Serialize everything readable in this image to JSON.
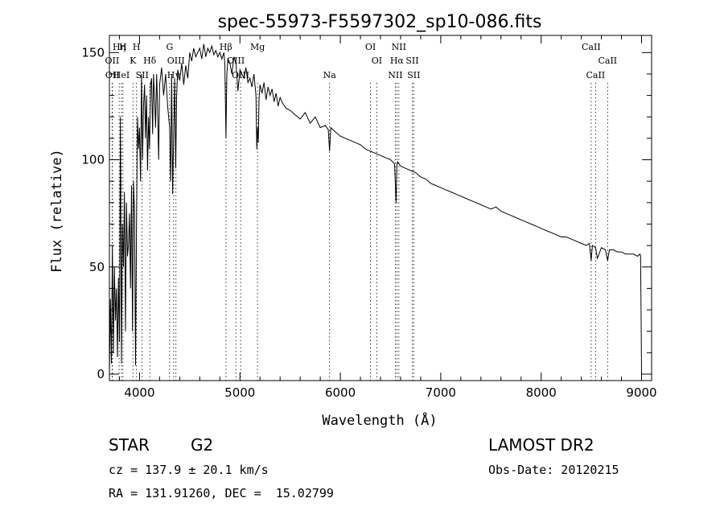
{
  "chart_data": {
    "type": "line",
    "title": "spec-55973-F5597302_sp10-086.fits",
    "xlabel": "Wavelength (Å)",
    "ylabel": "Flux (relative)",
    "xlim": [
      3700,
      9100
    ],
    "ylim": [
      -3,
      158
    ],
    "xticks": [
      4000,
      5000,
      6000,
      7000,
      8000,
      9000
    ],
    "yticks": [
      0,
      50,
      100,
      150
    ],
    "grid": false,
    "series": [
      {
        "x": [
          3700,
          3710,
          3720,
          3730,
          3740,
          3750,
          3760,
          3770,
          3780,
          3790,
          3800,
          3810,
          3820,
          3830,
          3840,
          3850,
          3860,
          3870,
          3880,
          3890,
          3900,
          3910,
          3920,
          3930,
          3940,
          3950,
          3960,
          3970,
          3980,
          3990,
          4000,
          4010,
          4020,
          4030,
          4040,
          4050,
          4060,
          4070,
          4080,
          4090,
          4100,
          4110,
          4120,
          4130,
          4140,
          4150,
          4160,
          4170,
          4180,
          4190,
          4200,
          4220,
          4240,
          4260,
          4280,
          4300,
          4310,
          4320,
          4330,
          4340,
          4350,
          4360,
          4370,
          4380,
          4400,
          4420,
          4440,
          4460,
          4480,
          4500,
          4520,
          4540,
          4560,
          4580,
          4600,
          4620,
          4640,
          4660,
          4680,
          4700,
          4720,
          4740,
          4760,
          4780,
          4800,
          4820,
          4840,
          4850,
          4861,
          4870,
          4880,
          4900,
          4920,
          4940,
          4960,
          4980,
          5000,
          5020,
          5040,
          5060,
          5080,
          5100,
          5120,
          5140,
          5160,
          5168,
          5175,
          5183,
          5190,
          5200,
          5220,
          5240,
          5260,
          5280,
          5300,
          5320,
          5340,
          5360,
          5380,
          5400,
          5430,
          5460,
          5500,
          5550,
          5600,
          5650,
          5700,
          5750,
          5800,
          5850,
          5880,
          5893,
          5905,
          5950,
          6000,
          6050,
          6100,
          6150,
          6200,
          6250,
          6300,
          6350,
          6400,
          6450,
          6500,
          6540,
          6555,
          6563,
          6570,
          6600,
          6650,
          6700,
          6750,
          6800,
          6850,
          6900,
          6950,
          7000,
          7050,
          7100,
          7150,
          7200,
          7250,
          7300,
          7350,
          7400,
          7450,
          7500,
          7550,
          7600,
          7650,
          7700,
          7750,
          7800,
          7850,
          7900,
          7950,
          8000,
          8050,
          8100,
          8150,
          8200,
          8250,
          8300,
          8350,
          8400,
          8450,
          8480,
          8498,
          8510,
          8542,
          8560,
          8600,
          8640,
          8662,
          8680,
          8720,
          8760,
          8800,
          8840,
          8880,
          8920,
          8960,
          8985,
          8990,
          8995,
          9000
        ],
        "y": [
          0,
          35,
          5,
          60,
          10,
          50,
          25,
          40,
          8,
          45,
          15,
          120,
          5,
          70,
          50,
          85,
          20,
          80,
          55,
          60,
          75,
          40,
          88,
          20,
          90,
          75,
          4,
          70,
          120,
          105,
          115,
          90,
          140,
          100,
          125,
          135,
          110,
          130,
          95,
          120,
          105,
          135,
          138,
          112,
          140,
          128,
          115,
          140,
          125,
          100,
          135,
          143,
          130,
          140,
          125,
          115,
          90,
          140,
          84,
          112,
          138,
          96,
          130,
          142,
          137,
          145,
          135,
          144,
          138,
          150,
          146,
          152,
          148,
          150,
          152,
          147,
          154,
          148,
          152,
          150,
          153,
          149,
          151,
          148,
          150,
          147,
          150,
          145,
          110,
          140,
          147,
          145,
          140,
          148,
          145,
          132,
          142,
          140,
          138,
          143,
          136,
          138,
          134,
          140,
          130,
          105,
          115,
          108,
          128,
          135,
          131,
          136,
          128,
          134,
          130,
          133,
          127,
          131,
          125,
          129,
          126,
          124,
          123,
          121,
          119,
          122,
          117,
          120,
          115,
          116,
          114,
          104,
          115,
          113,
          111,
          110,
          109,
          108,
          107,
          105,
          104,
          103,
          102,
          101,
          100,
          98,
          80,
          97,
          99,
          97,
          96,
          95,
          94,
          92,
          91,
          89,
          88,
          87,
          86,
          85,
          84,
          83,
          82,
          81,
          80,
          79,
          78,
          77,
          78,
          76,
          75,
          74,
          73,
          72,
          71,
          70,
          69,
          68,
          67,
          66,
          65,
          64,
          64,
          63,
          62,
          61,
          60,
          61,
          53,
          60,
          59,
          54,
          59,
          58,
          53,
          58,
          58,
          57,
          57,
          56,
          56,
          56,
          55,
          56,
          55,
          30,
          0
        ]
      }
    ],
    "lines": [
      {
        "x": 3727,
        "label": "OII",
        "row": 1
      },
      {
        "x": 3730,
        "label": "OII",
        "row": 2
      },
      {
        "x": 3797,
        "label": "Hη",
        "row": 0
      },
      {
        "x": 3820,
        "label": "HeI",
        "row": 2
      },
      {
        "x": 3835,
        "label": "H",
        "row": 0
      },
      {
        "x": 3934,
        "label": "K",
        "row": 1
      },
      {
        "x": 3970,
        "label": "H",
        "row": 0
      },
      {
        "x": 4026,
        "label": "SII",
        "row": 2
      },
      {
        "x": 4102,
        "label": "Hδ",
        "row": 1
      },
      {
        "x": 4300,
        "label": "G",
        "row": 0
      },
      {
        "x": 4340,
        "label": "Hγ",
        "row": 2
      },
      {
        "x": 4363,
        "label": "OIII",
        "row": 1
      },
      {
        "x": 4861,
        "label": "Hβ",
        "row": 0
      },
      {
        "x": 4959,
        "label": "OIII",
        "row": 1
      },
      {
        "x": 5007,
        "label": "OIII",
        "row": 2
      },
      {
        "x": 5175,
        "label": "Mg",
        "row": 0
      },
      {
        "x": 5893,
        "label": "Na",
        "row": 2
      },
      {
        "x": 6300,
        "label": "OI",
        "row": 0
      },
      {
        "x": 6363,
        "label": "OI",
        "row": 1
      },
      {
        "x": 6548,
        "label": "NII",
        "row": 2
      },
      {
        "x": 6563,
        "label": "Hα",
        "row": 1
      },
      {
        "x": 6583,
        "label": "NII",
        "row": 0
      },
      {
        "x": 6716,
        "label": "SII",
        "row": 1
      },
      {
        "x": 6731,
        "label": "SII",
        "row": 2
      },
      {
        "x": 8498,
        "label": "CaII",
        "row": 0
      },
      {
        "x": 8542,
        "label": "CaII",
        "row": 2
      },
      {
        "x": 8662,
        "label": "CaII",
        "row": 1
      }
    ]
  },
  "info": {
    "class_label": "STAR",
    "subclass": "G2",
    "survey": "LAMOST DR2",
    "cz": "cz = 137.9 ± 20.1 km/s",
    "obs_date": "Obs-Date: 20120215",
    "coords": "RA = 131.91260, DEC =  15.02799"
  }
}
